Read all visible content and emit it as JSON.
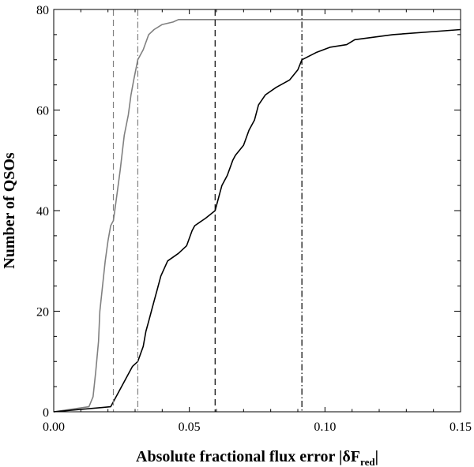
{
  "chart_data": {
    "type": "line",
    "title": "",
    "xlabel": "Absolute fractional flux error |δF",
    "xlabel_subscript": "red",
    "xlabel_suffix": "|",
    "ylabel": "Number of QSOs",
    "xlim": [
      0,
      0.15
    ],
    "ylim": [
      0,
      80
    ],
    "x_ticks": [
      0,
      0.05,
      0.1,
      0.15
    ],
    "x_tick_labels": [
      "0.00",
      "0.05",
      "0.10",
      "0.15"
    ],
    "y_ticks": [
      0,
      20,
      40,
      60,
      80
    ],
    "y_tick_labels": [
      "0",
      "20",
      "40",
      "60",
      "80"
    ],
    "grid": false,
    "series": [
      {
        "color": "#808080",
        "points": [
          [
            0,
            0
          ],
          [
            0.013,
            1
          ],
          [
            0.0145,
            3
          ],
          [
            0.0155,
            8
          ],
          [
            0.0165,
            14
          ],
          [
            0.017,
            20
          ],
          [
            0.018,
            25
          ],
          [
            0.019,
            30
          ],
          [
            0.02,
            34
          ],
          [
            0.021,
            37
          ],
          [
            0.022,
            38
          ],
          [
            0.0225,
            40
          ],
          [
            0.023,
            42
          ],
          [
            0.0245,
            48
          ],
          [
            0.026,
            55
          ],
          [
            0.0275,
            59
          ],
          [
            0.0285,
            63
          ],
          [
            0.0295,
            66
          ],
          [
            0.031,
            70
          ],
          [
            0.033,
            72
          ],
          [
            0.035,
            75
          ],
          [
            0.037,
            76
          ],
          [
            0.04,
            77
          ],
          [
            0.044,
            77.5
          ],
          [
            0.046,
            78
          ],
          [
            0.15,
            78
          ]
        ]
      },
      {
        "color": "#000000",
        "points": [
          [
            0,
            0
          ],
          [
            0.021,
            1
          ],
          [
            0.023,
            3
          ],
          [
            0.026,
            6
          ],
          [
            0.029,
            9
          ],
          [
            0.031,
            10
          ],
          [
            0.033,
            13
          ],
          [
            0.034,
            16
          ],
          [
            0.035,
            18
          ],
          [
            0.036,
            20
          ],
          [
            0.037,
            22
          ],
          [
            0.038,
            24
          ],
          [
            0.0395,
            27
          ],
          [
            0.042,
            30
          ],
          [
            0.046,
            31.5
          ],
          [
            0.049,
            33
          ],
          [
            0.051,
            36
          ],
          [
            0.052,
            37
          ],
          [
            0.056,
            38.5
          ],
          [
            0.0595,
            40
          ],
          [
            0.061,
            43
          ],
          [
            0.062,
            45
          ],
          [
            0.064,
            47
          ],
          [
            0.066,
            50
          ],
          [
            0.067,
            51
          ],
          [
            0.07,
            53
          ],
          [
            0.072,
            56
          ],
          [
            0.074,
            58
          ],
          [
            0.0755,
            61
          ],
          [
            0.078,
            63
          ],
          [
            0.082,
            64.5
          ],
          [
            0.087,
            66
          ],
          [
            0.09,
            68
          ],
          [
            0.0915,
            70
          ],
          [
            0.097,
            71.5
          ],
          [
            0.102,
            72.5
          ],
          [
            0.108,
            73
          ],
          [
            0.111,
            74
          ],
          [
            0.125,
            75
          ],
          [
            0.15,
            76
          ]
        ]
      }
    ],
    "vlines": [
      {
        "x": 0.022,
        "color": "#808080",
        "style": "dashed"
      },
      {
        "x": 0.031,
        "color": "#808080",
        "style": "dashdot"
      },
      {
        "x": 0.0595,
        "color": "#000000",
        "style": "dashed"
      },
      {
        "x": 0.0915,
        "color": "#000000",
        "style": "dashdot"
      }
    ]
  }
}
